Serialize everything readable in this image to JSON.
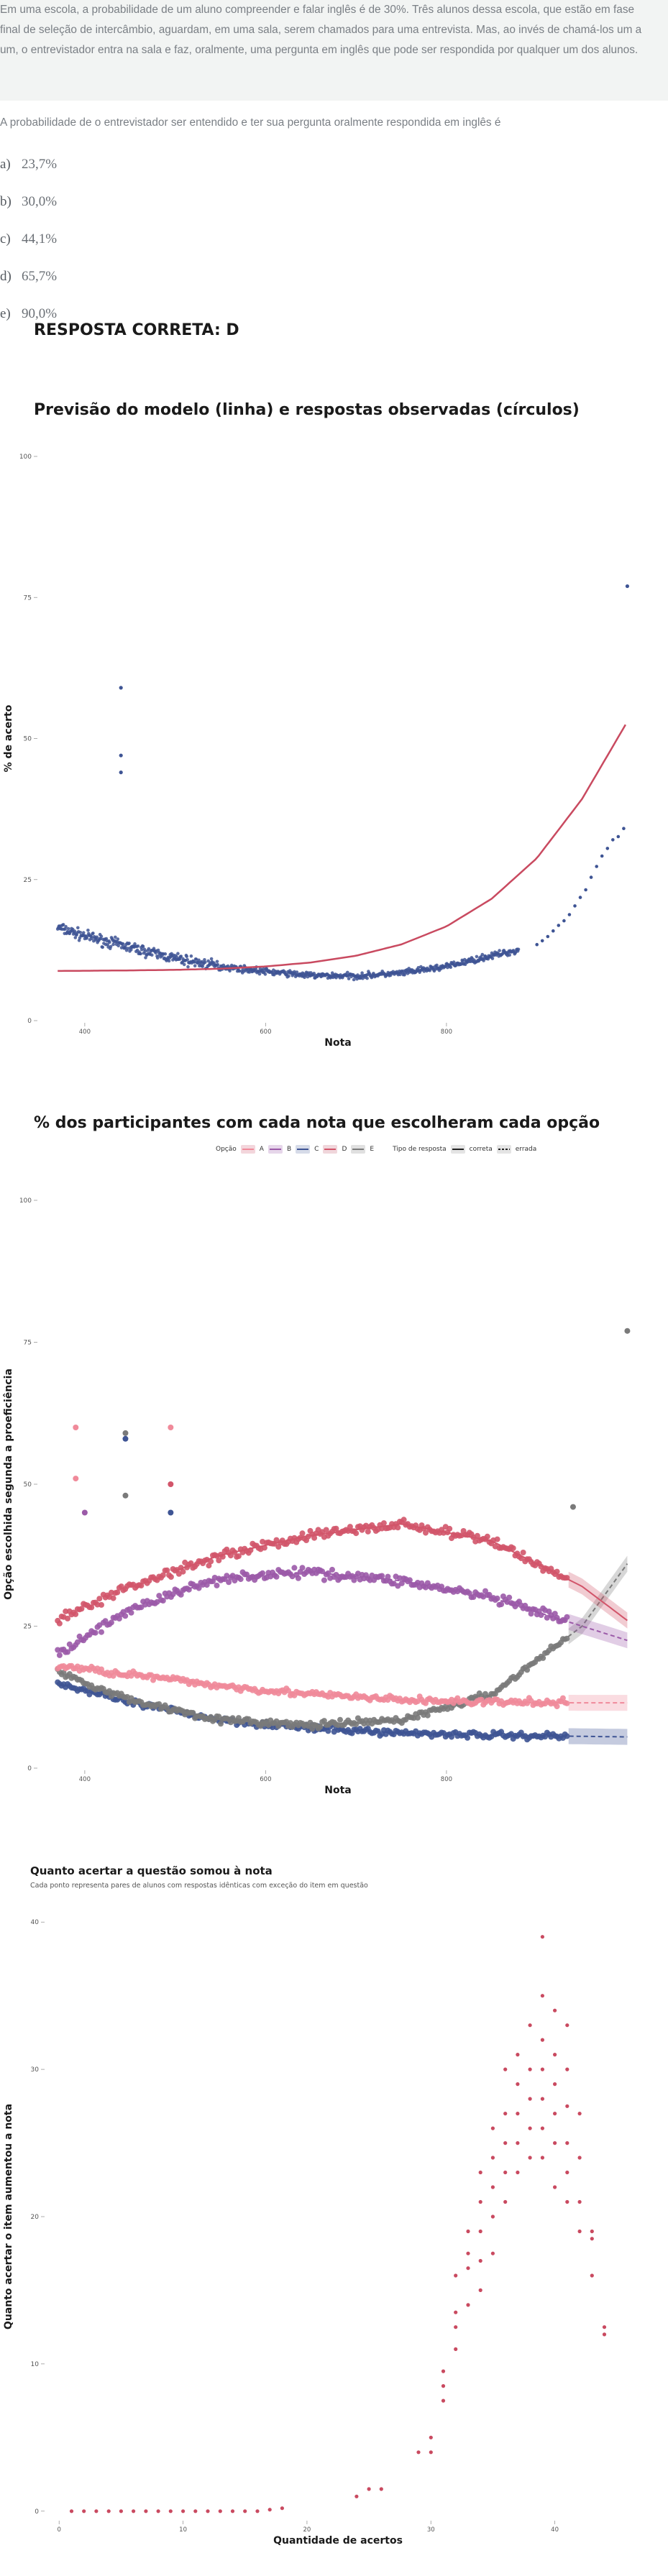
{
  "stem": {
    "lines": [
      "Em uma escola, a probabilidade de um aluno compreender e falar inglês é de 30%. Três alunos dessa escola, que estão em fase",
      "final de seleção de intercâmbio, aguardam, em uma sala, serem chamados para uma entrevista. Mas, ao invés de chamá-los um a",
      "um, o entrevistador entra na sala e faz, oralmente, uma pergunta em inglês que pode ser respondida por qualquer um dos alunos."
    ]
  },
  "question": "A probabilidade de o entrevistador ser entendido e ter sua pergunta oralmente respondida em inglês é",
  "options": [
    {
      "letter": "a)",
      "text": "23,7%"
    },
    {
      "letter": "b)",
      "text": "30,0%"
    },
    {
      "letter": "c)",
      "text": "44,1%"
    },
    {
      "letter": "d)",
      "text": "65,7%"
    },
    {
      "letter": "e)",
      "text": "90,0%"
    }
  ],
  "answer": "RESPOSTA CORRETA: D",
  "colors": {
    "A": "#f08a9a",
    "B": "#9b5aa8",
    "C": "#3e5494",
    "D": "#d2556a",
    "E": "#7a7a7a",
    "model_line": "#c94a60",
    "observed": "#3e5494",
    "gain_points": "#c94a60"
  },
  "chart_data": [
    {
      "type": "scatter",
      "title": "Previsão do modelo (linha) e respostas observadas (círculos)",
      "xlabel": "Nota",
      "ylabel": "% de acerto",
      "xlim": [
        350,
        1010
      ],
      "ylim": [
        0,
        100
      ],
      "x_ticks": [
        400,
        600,
        800
      ],
      "y_ticks": [
        0,
        25,
        50,
        75,
        100
      ],
      "grid": false,
      "model_curve": {
        "x": [
          370,
          450,
          500,
          550,
          600,
          650,
          700,
          750,
          800,
          850,
          900,
          950,
          1000
        ],
        "y": [
          8.8,
          8.9,
          9.0,
          9.2,
          9.6,
          10.3,
          11.5,
          13.5,
          16.7,
          21.6,
          28.8,
          39.3,
          53.0
        ]
      },
      "observed_trend": {
        "x": [
          370,
          400,
          450,
          500,
          550,
          600,
          650,
          700,
          750,
          800,
          850,
          880
        ],
        "y": [
          16.5,
          15.0,
          13.0,
          11.0,
          9.6,
          8.7,
          8.0,
          7.9,
          8.4,
          9.6,
          11.5,
          12.5
        ]
      },
      "observed_tail": {
        "x": [
          900,
          920,
          935,
          950,
          962,
          975,
          1000
        ],
        "y": [
          13.5,
          16.0,
          19.0,
          22.0,
          26.0,
          30.0,
          35.0
        ]
      },
      "outliers": [
        {
          "x": 1000,
          "y": 77
        },
        {
          "x": 440,
          "y": 59
        },
        {
          "x": 440,
          "y": 47
        },
        {
          "x": 440,
          "y": 44
        }
      ]
    },
    {
      "type": "scatter",
      "title": "% dos participantes com cada nota que escolheram cada opção",
      "xlabel": "Nota",
      "ylabel": "Opção escolhida segunda a proeficiência",
      "xlim": [
        350,
        1010
      ],
      "ylim": [
        0,
        100
      ],
      "x_ticks": [
        400,
        600,
        800
      ],
      "y_ticks": [
        0,
        25,
        50,
        75,
        100
      ],
      "legend_position": "top",
      "legend": {
        "option_title": "Opção",
        "options": [
          "A",
          "B",
          "C",
          "D",
          "E"
        ],
        "type_title": "Tipo de resposta",
        "types": [
          "correta",
          "errada"
        ]
      },
      "series": [
        {
          "name": "A",
          "x": [
            370,
            450,
            550,
            650,
            750,
            850,
            950,
            1000
          ],
          "y": [
            18,
            16.5,
            14.5,
            13,
            12,
            11.6,
            11.5,
            11.5
          ]
        },
        {
          "name": "B",
          "x": [
            370,
            450,
            550,
            650,
            750,
            850,
            950,
            1000
          ],
          "y": [
            20,
            28,
            33.5,
            34.5,
            33,
            30,
            25,
            22.5
          ]
        },
        {
          "name": "C",
          "x": [
            370,
            450,
            550,
            650,
            750,
            850,
            950,
            1000
          ],
          "y": [
            15,
            11.5,
            8.5,
            7,
            6.2,
            5.8,
            5.6,
            5.5
          ]
        },
        {
          "name": "D",
          "x": [
            370,
            450,
            550,
            650,
            750,
            850,
            950,
            1000
          ],
          "y": [
            26,
            32,
            37.5,
            41,
            43,
            40,
            32,
            26
          ]
        },
        {
          "name": "E",
          "x": [
            370,
            450,
            550,
            650,
            750,
            850,
            950,
            1000
          ],
          "y": [
            17,
            12,
            8.5,
            7.5,
            8.5,
            13,
            25,
            36
          ]
        }
      ],
      "outliers": [
        {
          "name": "E",
          "x": 1000,
          "y": 77
        },
        {
          "name": "A",
          "x": 390,
          "y": 60
        },
        {
          "name": "A",
          "x": 390,
          "y": 51
        },
        {
          "name": "A",
          "x": 495,
          "y": 60
        },
        {
          "name": "C",
          "x": 445,
          "y": 58
        },
        {
          "name": "E",
          "x": 445,
          "y": 59
        },
        {
          "name": "E",
          "x": 445,
          "y": 48
        },
        {
          "name": "D",
          "x": 495,
          "y": 50
        },
        {
          "name": "C",
          "x": 495,
          "y": 45
        },
        {
          "name": "B",
          "x": 400,
          "y": 45
        },
        {
          "name": "E",
          "x": 940,
          "y": 46
        }
      ]
    },
    {
      "type": "scatter",
      "title": "Quanto acertar a questão somou à nota",
      "subtitle": "Cada ponto representa pares de alunos com respostas idênticas com exceção do item em questão",
      "xlabel": "Quantidade de acertos",
      "ylabel": "Quanto acertar o item aumentou a nota",
      "xlim": [
        -1,
        46
      ],
      "ylim": [
        -0.5,
        40.5
      ],
      "x_ticks": [
        0,
        10,
        20,
        30,
        40
      ],
      "y_ticks": [
        0,
        10,
        20,
        30,
        40
      ],
      "points": [
        {
          "x": 1,
          "y": 0
        },
        {
          "x": 2,
          "y": 0
        },
        {
          "x": 3,
          "y": 0
        },
        {
          "x": 4,
          "y": 0
        },
        {
          "x": 5,
          "y": 0
        },
        {
          "x": 6,
          "y": 0
        },
        {
          "x": 7,
          "y": 0
        },
        {
          "x": 8,
          "y": 0
        },
        {
          "x": 9,
          "y": 0
        },
        {
          "x": 10,
          "y": 0
        },
        {
          "x": 11,
          "y": 0
        },
        {
          "x": 12,
          "y": 0
        },
        {
          "x": 13,
          "y": 0
        },
        {
          "x": 14,
          "y": 0
        },
        {
          "x": 15,
          "y": 0
        },
        {
          "x": 16,
          "y": 0
        },
        {
          "x": 17,
          "y": 0.1
        },
        {
          "x": 18,
          "y": 0.2
        },
        {
          "x": 24,
          "y": 1.0
        },
        {
          "x": 25,
          "y": 1.5
        },
        {
          "x": 26,
          "y": 1.5
        },
        {
          "x": 29,
          "y": 4.0
        },
        {
          "x": 30,
          "y": 4.0
        },
        {
          "x": 30,
          "y": 5.0
        },
        {
          "x": 31,
          "y": 7.5
        },
        {
          "x": 31,
          "y": 8.5
        },
        {
          "x": 31,
          "y": 9.5
        },
        {
          "x": 32,
          "y": 11.0
        },
        {
          "x": 32,
          "y": 12.5
        },
        {
          "x": 32,
          "y": 13.5
        },
        {
          "x": 32,
          "y": 16.0
        },
        {
          "x": 33,
          "y": 14.0
        },
        {
          "x": 33,
          "y": 16.5
        },
        {
          "x": 33,
          "y": 17.5
        },
        {
          "x": 33,
          "y": 19.0
        },
        {
          "x": 34,
          "y": 15.0
        },
        {
          "x": 34,
          "y": 17.0
        },
        {
          "x": 34,
          "y": 19.0
        },
        {
          "x": 34,
          "y": 21.0
        },
        {
          "x": 34,
          "y": 23.0
        },
        {
          "x": 35,
          "y": 17.5
        },
        {
          "x": 35,
          "y": 20.0
        },
        {
          "x": 35,
          "y": 22.0
        },
        {
          "x": 35,
          "y": 24.0
        },
        {
          "x": 35,
          "y": 26.0
        },
        {
          "x": 36,
          "y": 21.0
        },
        {
          "x": 36,
          "y": 23.0
        },
        {
          "x": 36,
          "y": 25.0
        },
        {
          "x": 36,
          "y": 27.0
        },
        {
          "x": 36,
          "y": 30.0
        },
        {
          "x": 37,
          "y": 23.0
        },
        {
          "x": 37,
          "y": 25.0
        },
        {
          "x": 37,
          "y": 27.0
        },
        {
          "x": 37,
          "y": 29.0
        },
        {
          "x": 37,
          "y": 31.0
        },
        {
          "x": 38,
          "y": 24.0
        },
        {
          "x": 38,
          "y": 26.0
        },
        {
          "x": 38,
          "y": 28.0
        },
        {
          "x": 38,
          "y": 30.0
        },
        {
          "x": 38,
          "y": 33.0
        },
        {
          "x": 39,
          "y": 24.0
        },
        {
          "x": 39,
          "y": 26.0
        },
        {
          "x": 39,
          "y": 28.0
        },
        {
          "x": 39,
          "y": 30.0
        },
        {
          "x": 39,
          "y": 32.0
        },
        {
          "x": 39,
          "y": 35.0
        },
        {
          "x": 40,
          "y": 22.0
        },
        {
          "x": 40,
          "y": 25.0
        },
        {
          "x": 40,
          "y": 27.0
        },
        {
          "x": 40,
          "y": 29.0
        },
        {
          "x": 40,
          "y": 31.0
        },
        {
          "x": 40,
          "y": 34.0
        },
        {
          "x": 41,
          "y": 21.0
        },
        {
          "x": 41,
          "y": 23.0
        },
        {
          "x": 41,
          "y": 25.0
        },
        {
          "x": 41,
          "y": 27.5
        },
        {
          "x": 41,
          "y": 30.0
        },
        {
          "x": 41,
          "y": 33.0
        },
        {
          "x": 42,
          "y": 19.0
        },
        {
          "x": 42,
          "y": 21.0
        },
        {
          "x": 42,
          "y": 24.0
        },
        {
          "x": 42,
          "y": 27.0
        },
        {
          "x": 43,
          "y": 16.0
        },
        {
          "x": 43,
          "y": 18.5
        },
        {
          "x": 43,
          "y": 19.0
        },
        {
          "x": 44,
          "y": 12.0
        },
        {
          "x": 44,
          "y": 12.5
        },
        {
          "x": 39,
          "y": 39.0
        }
      ]
    }
  ]
}
